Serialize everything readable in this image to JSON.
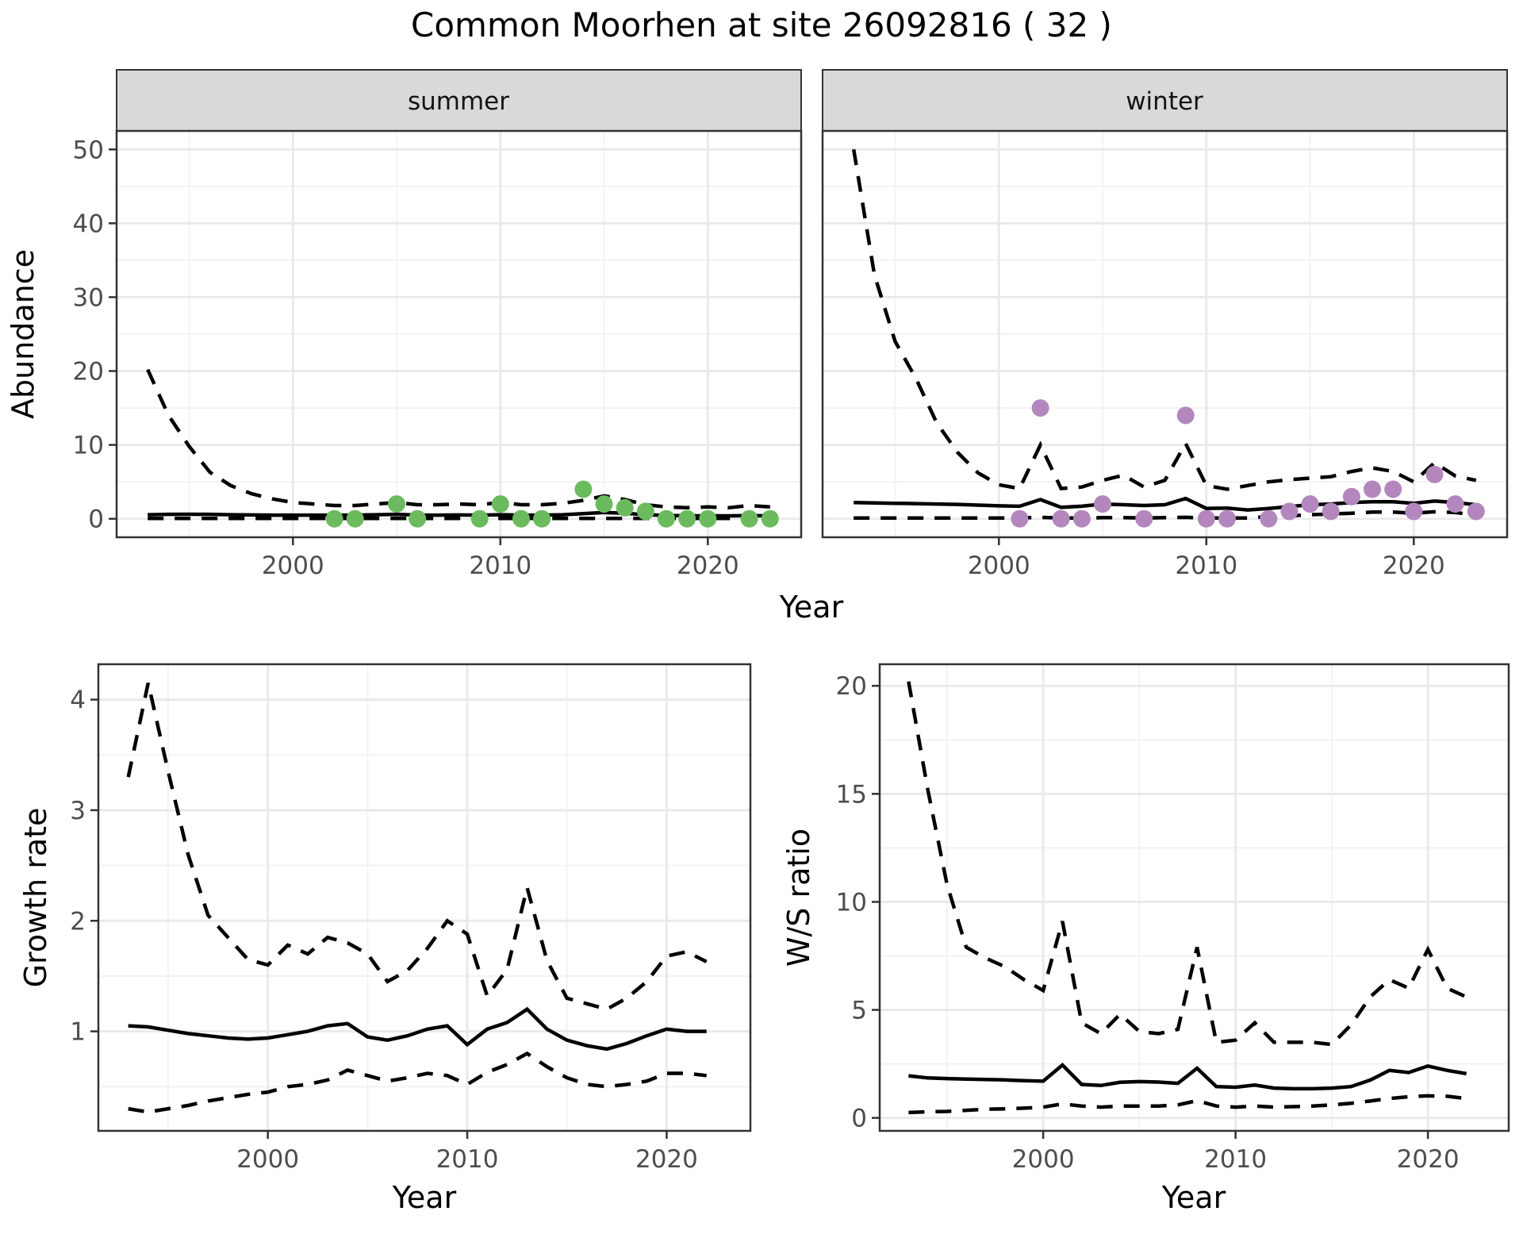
{
  "title": "Common Moorhen at site 26092816 ( 32 )",
  "axis_labels": {
    "abundance": "Abundance",
    "year": "Year",
    "growth_rate": "Growth rate",
    "ws_ratio": "W/S ratio"
  },
  "facets": {
    "summer": "summer",
    "winter": "winter"
  },
  "colors": {
    "summer_point": "#6bbb5e",
    "winter_point": "#b387bd",
    "line": "#000000",
    "panel_border": "#333333",
    "strip_bg": "#d9d9d9",
    "grid_major": "#e9e9e9",
    "grid_minor": "#f3f3f3",
    "tick_text": "#4d4d4d"
  },
  "chart_data": [
    {
      "id": "abundance-summer",
      "type": "line",
      "facet_label": "summer",
      "xlabel": "Year",
      "ylabel": "Abundance",
      "xlim": [
        1991.5,
        2024.5
      ],
      "ylim": [
        -2.5,
        52.5
      ],
      "xticks": [
        2000,
        2010,
        2020
      ],
      "yticks": [
        0,
        10,
        20,
        30,
        40,
        50
      ],
      "xminor": [
        1995,
        2005,
        2015
      ],
      "yminor": [
        5,
        15,
        25,
        35,
        45
      ],
      "x": [
        1993,
        1994,
        1995,
        1996,
        1997,
        1998,
        1999,
        2000,
        2001,
        2002,
        2003,
        2004,
        2005,
        2006,
        2007,
        2008,
        2009,
        2010,
        2011,
        2012,
        2013,
        2014,
        2015,
        2016,
        2017,
        2018,
        2019,
        2020,
        2021,
        2022,
        2023
      ],
      "series": [
        {
          "name": "upper_95ci",
          "style": "dashed",
          "values": [
            20.2,
            14,
            9.8,
            6.3,
            4.5,
            3.4,
            2.7,
            2.2,
            2.0,
            1.8,
            1.8,
            2.0,
            2.2,
            1.9,
            1.9,
            2.0,
            1.9,
            2.2,
            1.9,
            1.9,
            2.1,
            2.5,
            3.1,
            2.6,
            1.9,
            1.6,
            1.5,
            1.6,
            1.5,
            1.8,
            1.6
          ]
        },
        {
          "name": "median",
          "style": "solid",
          "values": [
            0.55,
            0.6,
            0.62,
            0.6,
            0.55,
            0.52,
            0.5,
            0.5,
            0.5,
            0.5,
            0.5,
            0.55,
            0.6,
            0.5,
            0.5,
            0.52,
            0.5,
            0.55,
            0.5,
            0.5,
            0.55,
            0.7,
            0.85,
            0.75,
            0.55,
            0.45,
            0.4,
            0.4,
            0.4,
            0.42,
            0.4
          ]
        },
        {
          "name": "lower_95ci",
          "style": "dashed",
          "values": [
            0.05,
            0.05,
            0.05,
            0.05,
            0.05,
            0.05,
            0.05,
            0.05,
            0.05,
            0.05,
            0.05,
            0.05,
            0.05,
            0.05,
            0.05,
            0.05,
            0.05,
            0.05,
            0.05,
            0.05,
            0.05,
            0.05,
            0.05,
            0.05,
            0.05,
            0.05,
            0.05,
            0.05,
            0.05,
            0.05,
            0.05
          ]
        }
      ],
      "points": {
        "name": "observed-counts-summer",
        "color": "#6bbb5e",
        "x": [
          2002,
          2003,
          2005,
          2006,
          2009,
          2010,
          2011,
          2012,
          2014,
          2015,
          2016,
          2017,
          2018,
          2019,
          2020,
          2022,
          2023
        ],
        "y": [
          0,
          0,
          2,
          0,
          0,
          2,
          0,
          0,
          4,
          2,
          1.5,
          1,
          0,
          0,
          0,
          0,
          0
        ]
      }
    },
    {
      "id": "abundance-winter",
      "type": "line",
      "facet_label": "winter",
      "xlabel": "Year",
      "ylabel": "Abundance",
      "xlim": [
        1991.5,
        2024.5
      ],
      "ylim": [
        -2.5,
        52.5
      ],
      "xticks": [
        2000,
        2010,
        2020
      ],
      "yticks": [
        0,
        10,
        20,
        30,
        40,
        50
      ],
      "xminor": [
        1995,
        2005,
        2015
      ],
      "yminor": [
        5,
        15,
        25,
        35,
        45
      ],
      "x": [
        1993,
        1994,
        1995,
        1996,
        1997,
        1998,
        1999,
        2000,
        2001,
        2002,
        2003,
        2004,
        2005,
        2006,
        2007,
        2008,
        2009,
        2010,
        2011,
        2012,
        2013,
        2014,
        2015,
        2016,
        2017,
        2018,
        2019,
        2020,
        2021,
        2022,
        2023
      ],
      "series": [
        {
          "name": "upper_95ci",
          "style": "dashed",
          "values": [
            50,
            33,
            24,
            19,
            13,
            9,
            6.2,
            4.6,
            4.1,
            10,
            4.1,
            4.3,
            5.2,
            5.9,
            4.3,
            5.2,
            10.2,
            4.5,
            4.0,
            4.5,
            5.0,
            5.3,
            5.5,
            5.7,
            6.4,
            6.9,
            6.4,
            5.0,
            7.6,
            5.8,
            5.2
          ]
        },
        {
          "name": "median",
          "style": "solid",
          "values": [
            2.2,
            2.15,
            2.1,
            2.05,
            2.0,
            1.95,
            1.85,
            1.75,
            1.7,
            2.6,
            1.55,
            1.7,
            2.0,
            1.9,
            1.8,
            1.9,
            2.75,
            1.4,
            1.45,
            1.2,
            1.4,
            1.65,
            1.9,
            2.0,
            2.2,
            2.3,
            2.3,
            2.1,
            2.4,
            2.2,
            1.9
          ]
        },
        {
          "name": "lower_95ci",
          "style": "dashed",
          "values": [
            0.1,
            0.1,
            0.1,
            0.1,
            0.1,
            0.1,
            0.1,
            0.1,
            0.1,
            0.2,
            0.1,
            0.1,
            0.15,
            0.15,
            0.1,
            0.15,
            0.2,
            0.1,
            0.1,
            0.1,
            0.3,
            0.4,
            0.55,
            0.65,
            0.75,
            0.9,
            0.9,
            0.75,
            0.95,
            0.85,
            0.5
          ]
        }
      ],
      "points": {
        "name": "observed-counts-winter",
        "color": "#b387bd",
        "x": [
          2001,
          2002,
          2003,
          2004,
          2005,
          2007,
          2009,
          2010,
          2011,
          2013,
          2014,
          2015,
          2016,
          2017,
          2018,
          2019,
          2020,
          2021,
          2022,
          2023
        ],
        "y": [
          0,
          15,
          0,
          0,
          2,
          0,
          14,
          0,
          0,
          0,
          1,
          2,
          1,
          3,
          4,
          4,
          1,
          6,
          2,
          1
        ]
      }
    },
    {
      "id": "growth-rate",
      "type": "line",
      "xlabel": "Year",
      "ylabel": "Growth rate",
      "xlim": [
        1991.5,
        2024.2
      ],
      "ylim": [
        0.1,
        4.32
      ],
      "xticks": [
        2000,
        2010,
        2020
      ],
      "yticks": [
        1,
        2,
        3,
        4
      ],
      "xminor": [
        1995,
        2005,
        2015
      ],
      "yminor": [
        0.5,
        1.5,
        2.5,
        3.5
      ],
      "x": [
        1993,
        1994,
        1995,
        1996,
        1997,
        1998,
        1999,
        2000,
        2001,
        2002,
        2003,
        2004,
        2005,
        2006,
        2007,
        2008,
        2009,
        2010,
        2011,
        2012,
        2013,
        2014,
        2015,
        2016,
        2017,
        2018,
        2019,
        2020,
        2021,
        2022
      ],
      "series": [
        {
          "name": "upper_95ci",
          "style": "dashed",
          "values": [
            3.3,
            4.15,
            3.35,
            2.6,
            2.05,
            1.85,
            1.65,
            1.6,
            1.78,
            1.7,
            1.85,
            1.8,
            1.7,
            1.45,
            1.55,
            1.75,
            2.0,
            1.88,
            1.32,
            1.56,
            2.3,
            1.64,
            1.3,
            1.25,
            1.2,
            1.3,
            1.45,
            1.68,
            1.72,
            1.63
          ]
        },
        {
          "name": "median",
          "style": "solid",
          "values": [
            1.05,
            1.04,
            1.01,
            0.98,
            0.96,
            0.94,
            0.93,
            0.94,
            0.97,
            1.0,
            1.05,
            1.07,
            0.95,
            0.92,
            0.96,
            1.02,
            1.05,
            0.88,
            1.02,
            1.08,
            1.2,
            1.02,
            0.92,
            0.87,
            0.84,
            0.89,
            0.96,
            1.02,
            1.0,
            1.0
          ]
        },
        {
          "name": "lower_95ci",
          "style": "dashed",
          "values": [
            0.3,
            0.27,
            0.3,
            0.33,
            0.37,
            0.4,
            0.43,
            0.45,
            0.5,
            0.52,
            0.56,
            0.65,
            0.6,
            0.55,
            0.58,
            0.62,
            0.6,
            0.52,
            0.63,
            0.7,
            0.8,
            0.68,
            0.58,
            0.52,
            0.5,
            0.52,
            0.55,
            0.62,
            0.62,
            0.6
          ]
        }
      ]
    },
    {
      "id": "ws-ratio",
      "type": "line",
      "xlabel": "Year",
      "ylabel": "W/S ratio",
      "xlim": [
        1991.5,
        2024.2
      ],
      "ylim": [
        -0.6,
        21.0
      ],
      "xticks": [
        2000,
        2010,
        2020
      ],
      "yticks": [
        0,
        5,
        10,
        15,
        20
      ],
      "xminor": [
        1995,
        2005,
        2015
      ],
      "yminor": [
        2.5,
        7.5,
        12.5,
        17.5
      ],
      "x": [
        1993,
        1994,
        1995,
        1996,
        1997,
        1998,
        1999,
        2000,
        2001,
        2002,
        2003,
        2004,
        2005,
        2006,
        2007,
        2008,
        2009,
        2010,
        2011,
        2012,
        2013,
        2014,
        2015,
        2016,
        2017,
        2018,
        2019,
        2020,
        2021,
        2022
      ],
      "series": [
        {
          "name": "upper_95ci",
          "style": "dashed",
          "values": [
            20.2,
            15.2,
            10.8,
            7.9,
            7.4,
            7.0,
            6.4,
            5.9,
            9.1,
            4.4,
            3.9,
            4.8,
            4.0,
            3.9,
            4.1,
            7.9,
            3.5,
            3.6,
            4.4,
            3.5,
            3.5,
            3.5,
            3.4,
            4.3,
            5.6,
            6.4,
            6.0,
            7.8,
            6.0,
            5.6
          ]
        },
        {
          "name": "median",
          "style": "solid",
          "values": [
            1.95,
            1.85,
            1.82,
            1.8,
            1.78,
            1.76,
            1.72,
            1.7,
            2.45,
            1.55,
            1.5,
            1.65,
            1.68,
            1.66,
            1.6,
            2.3,
            1.45,
            1.42,
            1.52,
            1.38,
            1.35,
            1.35,
            1.38,
            1.45,
            1.75,
            2.2,
            2.1,
            2.4,
            2.2,
            2.05
          ]
        },
        {
          "name": "lower_95ci",
          "style": "dashed",
          "values": [
            0.25,
            0.28,
            0.3,
            0.35,
            0.4,
            0.42,
            0.45,
            0.5,
            0.65,
            0.55,
            0.5,
            0.55,
            0.55,
            0.55,
            0.6,
            0.8,
            0.55,
            0.5,
            0.55,
            0.5,
            0.52,
            0.55,
            0.6,
            0.68,
            0.78,
            0.9,
            0.98,
            1.02,
            1.0,
            0.9
          ]
        }
      ]
    }
  ]
}
